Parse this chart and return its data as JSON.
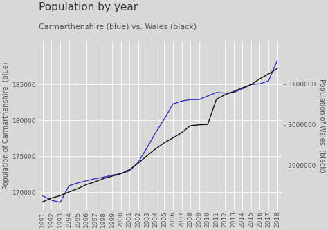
{
  "title": "Population by year",
  "subtitle": "Carmarthenshire (blue) vs. Wales (black)",
  "ylabel_left": "Population of Carmarthenshire  (blue)",
  "ylabel_right": "Population of Wales  (black)",
  "background_color": "#d8d8d8",
  "plot_bg_color": "#d8d8d8",
  "years": [
    1991,
    1992,
    1993,
    1994,
    1995,
    1996,
    1997,
    1998,
    1999,
    2000,
    2001,
    2002,
    2003,
    2004,
    2005,
    2006,
    2007,
    2008,
    2009,
    2010,
    2011,
    2012,
    2013,
    2014,
    2015,
    2016,
    2017,
    2018
  ],
  "carmarthenshire": [
    169500,
    168900,
    168600,
    170900,
    171300,
    171600,
    171900,
    172100,
    172400,
    172600,
    173000,
    174200,
    176200,
    178300,
    180200,
    182300,
    182700,
    182900,
    182900,
    183400,
    183900,
    183800,
    183900,
    184400,
    185000,
    185100,
    185500,
    188300
  ],
  "wales": [
    2811000,
    2820000,
    2826000,
    2835000,
    2843000,
    2853000,
    2860000,
    2868000,
    2874000,
    2880000,
    2890000,
    2906000,
    2924000,
    2941000,
    2956000,
    2968000,
    2981000,
    2998000,
    3000000,
    3001000,
    3063000,
    3074000,
    3082000,
    3091000,
    3099000,
    3113000,
    3125000,
    3138000
  ],
  "line_color_blue": "#3333bb",
  "line_color_black": "#111111",
  "ylim_left": [
    167500,
    191000
  ],
  "ylim_right": [
    2790000,
    3205000
  ],
  "yticks_left": [
    170000,
    175000,
    180000,
    185000
  ],
  "yticks_right": [
    2900000,
    3000000,
    3100000
  ],
  "grid_color": "#ffffff",
  "title_fontsize": 11,
  "subtitle_fontsize": 8,
  "axis_label_fontsize": 7,
  "tick_fontsize": 6.5
}
